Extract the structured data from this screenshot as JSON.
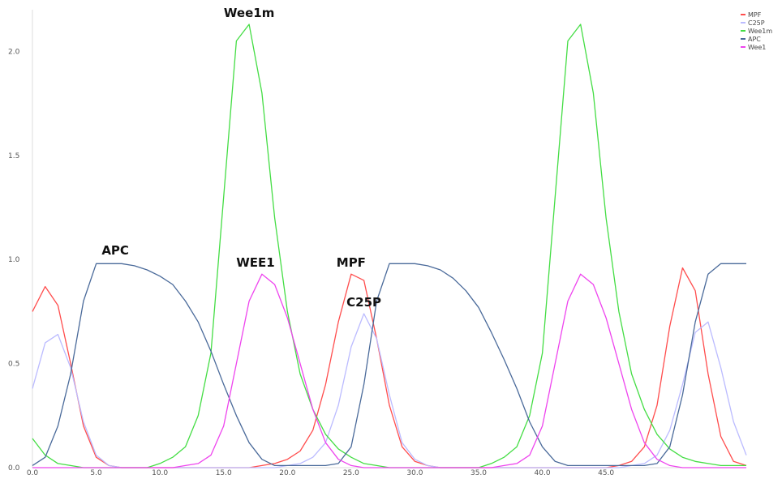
{
  "chart_data": {
    "type": "line",
    "title": "",
    "xlabel": "",
    "ylabel": "",
    "xlim": [
      0,
      56
    ],
    "ylim": [
      0,
      2.2
    ],
    "x_ticks": [
      "0.0",
      "5.0",
      "10.0",
      "15.0",
      "20.0",
      "25.0",
      "30.0",
      "35.0",
      "40.0",
      "45.0"
    ],
    "y_ticks": [
      "0.0",
      "0.5",
      "1.0",
      "1.5",
      "2.0"
    ],
    "grid": false,
    "legend_position": "top-right",
    "x": [
      0,
      1,
      2,
      3,
      4,
      5,
      6,
      7,
      8,
      9,
      10,
      11,
      12,
      13,
      14,
      15,
      16,
      17,
      18,
      19,
      20,
      21,
      22,
      23,
      24,
      25,
      26,
      27,
      28,
      29,
      30,
      31,
      32,
      33,
      34,
      35,
      36,
      37,
      38,
      39,
      40,
      41,
      42,
      43,
      44,
      45,
      46,
      47,
      48,
      49,
      50,
      51,
      52,
      53,
      54,
      55,
      56
    ],
    "series": [
      {
        "name": "MPF",
        "color": "#ff4d4d",
        "values": [
          0.75,
          0.87,
          0.78,
          0.5,
          0.2,
          0.05,
          0.01,
          0,
          0,
          0,
          0,
          0,
          0,
          0,
          0,
          0,
          0,
          0,
          0.01,
          0.02,
          0.04,
          0.08,
          0.18,
          0.4,
          0.7,
          0.93,
          0.9,
          0.62,
          0.3,
          0.1,
          0.03,
          0.01,
          0,
          0,
          0,
          0,
          0,
          0,
          0,
          0,
          0,
          0,
          0,
          0,
          0,
          0,
          0.01,
          0.03,
          0.1,
          0.3,
          0.68,
          0.96,
          0.85,
          0.45,
          0.15,
          0.03,
          0.01
        ]
      },
      {
        "name": "C25P",
        "color": "#bbbbff",
        "values": [
          0.38,
          0.6,
          0.64,
          0.48,
          0.22,
          0.06,
          0.01,
          0,
          0,
          0,
          0,
          0,
          0,
          0,
          0,
          0,
          0,
          0,
          0,
          0,
          0.01,
          0.02,
          0.05,
          0.12,
          0.3,
          0.58,
          0.74,
          0.62,
          0.35,
          0.12,
          0.04,
          0.01,
          0,
          0,
          0,
          0,
          0,
          0,
          0,
          0,
          0,
          0,
          0,
          0,
          0,
          0,
          0,
          0.01,
          0.02,
          0.06,
          0.18,
          0.4,
          0.65,
          0.7,
          0.48,
          0.22,
          0.06
        ]
      },
      {
        "name": "Wee1m",
        "color": "#44dd44",
        "values": [
          0.14,
          0.06,
          0.02,
          0.01,
          0,
          0,
          0,
          0,
          0,
          0,
          0.02,
          0.05,
          0.1,
          0.25,
          0.55,
          1.3,
          2.05,
          2.13,
          1.8,
          1.2,
          0.75,
          0.45,
          0.28,
          0.16,
          0.09,
          0.05,
          0.02,
          0.01,
          0,
          0,
          0,
          0,
          0,
          0,
          0,
          0,
          0.02,
          0.05,
          0.1,
          0.25,
          0.55,
          1.3,
          2.05,
          2.13,
          1.8,
          1.2,
          0.75,
          0.45,
          0.28,
          0.16,
          0.09,
          0.05,
          0.03,
          0.02,
          0.01,
          0.01,
          0.01
        ]
      },
      {
        "name": "APC",
        "color": "#4a6a9a",
        "values": [
          0.01,
          0.05,
          0.2,
          0.45,
          0.8,
          0.98,
          0.98,
          0.98,
          0.97,
          0.95,
          0.92,
          0.88,
          0.8,
          0.7,
          0.56,
          0.4,
          0.25,
          0.12,
          0.04,
          0.01,
          0.01,
          0.01,
          0.01,
          0.01,
          0.02,
          0.1,
          0.4,
          0.8,
          0.98,
          0.98,
          0.98,
          0.97,
          0.95,
          0.91,
          0.85,
          0.77,
          0.65,
          0.52,
          0.38,
          0.22,
          0.1,
          0.03,
          0.01,
          0.01,
          0.01,
          0.01,
          0.01,
          0.01,
          0.01,
          0.02,
          0.1,
          0.35,
          0.7,
          0.93,
          0.98,
          0.98,
          0.98
        ]
      },
      {
        "name": "Wee1",
        "color": "#ee44ee",
        "values": [
          0,
          0,
          0,
          0,
          0,
          0,
          0,
          0,
          0,
          0,
          0,
          0,
          0.01,
          0.02,
          0.06,
          0.2,
          0.5,
          0.8,
          0.93,
          0.88,
          0.72,
          0.5,
          0.28,
          0.12,
          0.04,
          0.01,
          0,
          0,
          0,
          0,
          0,
          0,
          0,
          0,
          0,
          0,
          0,
          0.01,
          0.02,
          0.06,
          0.2,
          0.5,
          0.8,
          0.93,
          0.88,
          0.72,
          0.5,
          0.28,
          0.12,
          0.04,
          0.01,
          0,
          0,
          0,
          0,
          0,
          0
        ]
      }
    ],
    "annotations": [
      {
        "text": "Wee1m",
        "x": 17,
        "y": 2.13
      },
      {
        "text": "APC",
        "x": 6.5,
        "y": 0.99
      },
      {
        "text": "WEE1",
        "x": 17.5,
        "y": 0.93
      },
      {
        "text": "MPF",
        "x": 25,
        "y": 0.93
      },
      {
        "text": "C25P",
        "x": 26,
        "y": 0.74
      }
    ]
  }
}
